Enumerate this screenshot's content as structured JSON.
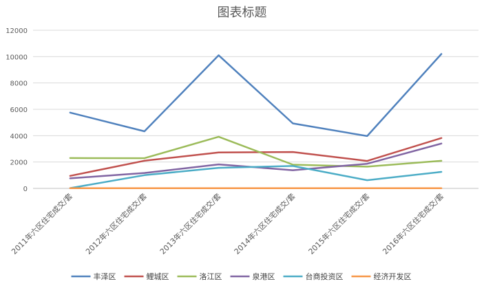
{
  "chart_data": {
    "type": "line",
    "title": "图表标题",
    "categories": [
      "2011年六区住宅成交/套",
      "2012年六区住宅成交/套",
      "2013年六区住宅成交/套",
      "2014年六区住宅成交/套",
      "2015年六区住宅成交/套",
      "2016年六区住宅成交/套"
    ],
    "ylim": [
      0,
      12000
    ],
    "yticks": [
      0,
      2000,
      4000,
      6000,
      8000,
      10000,
      12000
    ],
    "grid": true,
    "legend_position": "bottom",
    "series": [
      {
        "name": "丰泽区",
        "color": "#4f81bd",
        "values": [
          5750,
          4330,
          10100,
          4930,
          3970,
          10200
        ]
      },
      {
        "name": "鲤城区",
        "color": "#c0504d",
        "values": [
          950,
          2100,
          2730,
          2760,
          2080,
          3820
        ]
      },
      {
        "name": "洛江区",
        "color": "#9bbb59",
        "values": [
          2300,
          2290,
          3920,
          1800,
          1650,
          2090
        ]
      },
      {
        "name": "泉港区",
        "color": "#8064a2",
        "values": [
          760,
          1170,
          1820,
          1380,
          1870,
          3400
        ]
      },
      {
        "name": "台商投资区",
        "color": "#4bacc6",
        "values": [
          20,
          1000,
          1560,
          1700,
          620,
          1250
        ]
      },
      {
        "name": "经济开发区",
        "color": "#f79646",
        "values": [
          10,
          10,
          10,
          10,
          10,
          10
        ]
      }
    ]
  }
}
